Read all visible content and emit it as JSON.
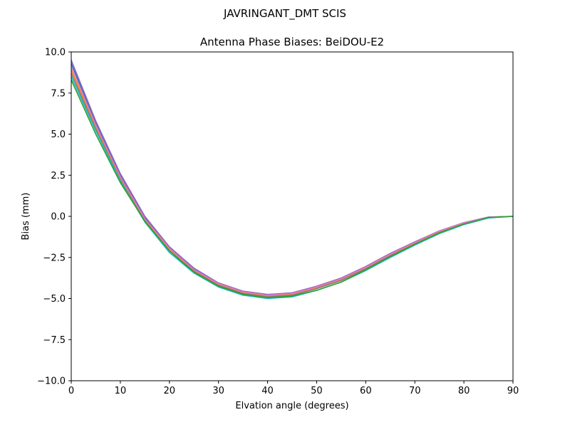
{
  "figure": {
    "suptitle": "JAVRINGANT_DMT  SCIS"
  },
  "chart_data": {
    "type": "line",
    "title": "Antenna Phase Biases: BeiDOU-E2",
    "xlabel": "Elvation angle (degrees)",
    "ylabel": "Bias (mm)",
    "xlim": [
      0,
      90
    ],
    "ylim": [
      -10,
      10
    ],
    "xticks": [
      0,
      10,
      20,
      30,
      40,
      50,
      60,
      70,
      80,
      90
    ],
    "xtick_labels": [
      "0",
      "10",
      "20",
      "30",
      "40",
      "50",
      "60",
      "70",
      "80",
      "90"
    ],
    "yticks": [
      10,
      7.5,
      5,
      2.5,
      0,
      -2.5,
      -5,
      -7.5,
      -10
    ],
    "ytick_labels": [
      "10.0",
      "7.5",
      "5.0",
      "2.5",
      "0.0",
      "−2.5",
      "−5.0",
      "−7.5",
      "−10.0"
    ],
    "grid": false,
    "x": [
      0,
      5,
      10,
      15,
      20,
      25,
      30,
      35,
      40,
      45,
      50,
      55,
      60,
      65,
      70,
      75,
      80,
      85,
      90
    ],
    "series": [
      {
        "color": "#1f77b4",
        "values": [
          9.3,
          5.7,
          2.5,
          -0.1,
          -1.9,
          -3.2,
          -4.1,
          -4.6,
          -4.8,
          -4.7,
          -4.3,
          -3.8,
          -3.1,
          -2.3,
          -1.6,
          -0.9,
          -0.4,
          -0.05,
          0.0
        ]
      },
      {
        "color": "#ff7f0e",
        "values": [
          8.9,
          5.4,
          2.3,
          -0.2,
          -2.0,
          -3.3,
          -4.15,
          -4.65,
          -4.85,
          -4.75,
          -4.35,
          -3.85,
          -3.15,
          -2.35,
          -1.65,
          -0.95,
          -0.45,
          -0.07,
          0.0
        ]
      },
      {
        "color": "#9467bd",
        "values": [
          9.5,
          5.8,
          2.6,
          0.0,
          -1.85,
          -3.15,
          -4.05,
          -4.55,
          -4.75,
          -4.65,
          -4.25,
          -3.75,
          -3.05,
          -2.25,
          -1.55,
          -0.88,
          -0.38,
          -0.04,
          0.0
        ]
      },
      {
        "color": "#e377c2",
        "values": [
          9.1,
          5.55,
          2.4,
          -0.15,
          -1.95,
          -3.25,
          -4.1,
          -4.6,
          -4.8,
          -4.7,
          -4.3,
          -3.8,
          -3.1,
          -2.3,
          -1.6,
          -0.9,
          -0.4,
          -0.05,
          0.0
        ]
      },
      {
        "color": "#7f7f7f",
        "values": [
          8.7,
          5.3,
          2.2,
          -0.3,
          -2.1,
          -3.35,
          -4.2,
          -4.7,
          -4.9,
          -4.8,
          -4.4,
          -3.9,
          -3.2,
          -2.4,
          -1.7,
          -1.0,
          -0.48,
          -0.08,
          0.0
        ]
      },
      {
        "color": "#17becf",
        "values": [
          8.5,
          5.2,
          2.15,
          -0.35,
          -2.2,
          -3.45,
          -4.3,
          -4.8,
          -5.0,
          -4.9,
          -4.5,
          -4.0,
          -3.3,
          -2.5,
          -1.75,
          -1.05,
          -0.5,
          -0.1,
          0.0
        ]
      },
      {
        "color": "#2ca02c",
        "values": [
          8.3,
          5.0,
          2.05,
          -0.3,
          -2.1,
          -3.4,
          -4.25,
          -4.75,
          -4.95,
          -4.85,
          -4.5,
          -4.0,
          -3.25,
          -2.45,
          -1.7,
          -1.0,
          -0.47,
          -0.07,
          0.0
        ]
      }
    ]
  }
}
